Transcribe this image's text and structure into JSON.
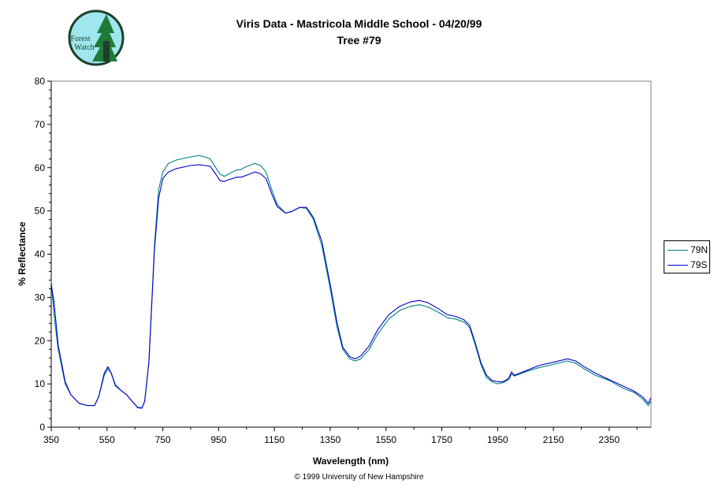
{
  "logo": {
    "line1": "Forest",
    "line2": "Watch",
    "colors": {
      "sky": "#9fe6ee",
      "ring": "#1e3f2a",
      "tree": "#1f7a3a",
      "text": "#1e3f2a"
    }
  },
  "chart_data": {
    "type": "line",
    "title": "Viris Data - Mastricola Middle School - 04/20/99",
    "subtitle": "Tree #79",
    "xlabel": "Wavelength (nm)",
    "ylabel": "% Reflectance",
    "xlim": [
      350,
      2500
    ],
    "ylim": [
      0,
      80
    ],
    "xticks": [
      350,
      550,
      750,
      950,
      1150,
      1350,
      1550,
      1750,
      1950,
      2150,
      2350
    ],
    "yticks": [
      0,
      10,
      20,
      30,
      40,
      50,
      60,
      70,
      80
    ],
    "grid": false,
    "legend_position": "right",
    "series": [
      {
        "name": "79N",
        "color": "#008080",
        "points": [
          [
            350,
            34
          ],
          [
            360,
            26
          ],
          [
            375,
            18
          ],
          [
            400,
            10
          ],
          [
            420,
            7.5
          ],
          [
            450,
            5.5
          ],
          [
            480,
            5
          ],
          [
            505,
            5
          ],
          [
            520,
            7
          ],
          [
            540,
            12
          ],
          [
            553,
            13.5
          ],
          [
            565,
            12.5
          ],
          [
            580,
            9.5
          ],
          [
            600,
            8.5
          ],
          [
            620,
            7.5
          ],
          [
            640,
            6
          ],
          [
            660,
            4.6
          ],
          [
            675,
            4.5
          ],
          [
            685,
            6
          ],
          [
            700,
            15
          ],
          [
            710,
            28
          ],
          [
            720,
            42
          ],
          [
            735,
            55
          ],
          [
            750,
            59
          ],
          [
            770,
            61
          ],
          [
            800,
            61.8
          ],
          [
            850,
            62.5
          ],
          [
            880,
            62.8
          ],
          [
            900,
            62.5
          ],
          [
            920,
            62
          ],
          [
            940,
            60
          ],
          [
            955,
            58.5
          ],
          [
            970,
            58
          ],
          [
            985,
            58.5
          ],
          [
            1000,
            59
          ],
          [
            1015,
            59.5
          ],
          [
            1030,
            59.5
          ],
          [
            1040,
            60
          ],
          [
            1060,
            60.5
          ],
          [
            1080,
            61
          ],
          [
            1100,
            60.5
          ],
          [
            1120,
            59
          ],
          [
            1140,
            55
          ],
          [
            1160,
            51.5
          ],
          [
            1190,
            49.5
          ],
          [
            1210,
            49.8
          ],
          [
            1240,
            50.8
          ],
          [
            1265,
            50.6
          ],
          [
            1290,
            48
          ],
          [
            1320,
            42
          ],
          [
            1350,
            32
          ],
          [
            1375,
            23
          ],
          [
            1395,
            18
          ],
          [
            1420,
            15.8
          ],
          [
            1440,
            15.3
          ],
          [
            1460,
            15.8
          ],
          [
            1490,
            18
          ],
          [
            1520,
            21.5
          ],
          [
            1560,
            25
          ],
          [
            1600,
            27
          ],
          [
            1640,
            28
          ],
          [
            1670,
            28.3
          ],
          [
            1700,
            27.8
          ],
          [
            1740,
            26.5
          ],
          [
            1770,
            25.3
          ],
          [
            1800,
            25
          ],
          [
            1830,
            24.3
          ],
          [
            1850,
            23
          ],
          [
            1870,
            19
          ],
          [
            1890,
            14.5
          ],
          [
            1910,
            11.5
          ],
          [
            1930,
            10.5
          ],
          [
            1950,
            10
          ],
          [
            1970,
            10.3
          ],
          [
            1990,
            11
          ],
          [
            2000,
            12.3
          ],
          [
            2010,
            11.8
          ],
          [
            2050,
            12.8
          ],
          [
            2100,
            13.8
          ],
          [
            2150,
            14.5
          ],
          [
            2200,
            15.3
          ],
          [
            2230,
            14.8
          ],
          [
            2260,
            13.5
          ],
          [
            2300,
            12
          ],
          [
            2350,
            10.8
          ],
          [
            2400,
            9
          ],
          [
            2440,
            8
          ],
          [
            2470,
            6.5
          ],
          [
            2490,
            5
          ],
          [
            2500,
            6
          ]
        ]
      },
      {
        "name": "79S",
        "color": "#0000cc",
        "points": [
          [
            350,
            33
          ],
          [
            360,
            29
          ],
          [
            375,
            19
          ],
          [
            400,
            10.5
          ],
          [
            420,
            7.5
          ],
          [
            450,
            5.5
          ],
          [
            480,
            5
          ],
          [
            505,
            5
          ],
          [
            520,
            7
          ],
          [
            540,
            12.5
          ],
          [
            553,
            14
          ],
          [
            565,
            12.5
          ],
          [
            580,
            9.8
          ],
          [
            600,
            8.5
          ],
          [
            620,
            7.5
          ],
          [
            640,
            6
          ],
          [
            660,
            4.5
          ],
          [
            675,
            4.4
          ],
          [
            685,
            6
          ],
          [
            700,
            15
          ],
          [
            710,
            28
          ],
          [
            720,
            41
          ],
          [
            735,
            53
          ],
          [
            750,
            57.5
          ],
          [
            770,
            59
          ],
          [
            800,
            59.8
          ],
          [
            850,
            60.5
          ],
          [
            880,
            60.7
          ],
          [
            900,
            60.5
          ],
          [
            920,
            60.3
          ],
          [
            940,
            58.5
          ],
          [
            955,
            57
          ],
          [
            970,
            56.8
          ],
          [
            985,
            57.2
          ],
          [
            1000,
            57.5
          ],
          [
            1015,
            57.8
          ],
          [
            1030,
            57.8
          ],
          [
            1040,
            58
          ],
          [
            1060,
            58.5
          ],
          [
            1080,
            59
          ],
          [
            1100,
            58.6
          ],
          [
            1120,
            57.5
          ],
          [
            1140,
            54
          ],
          [
            1160,
            51
          ],
          [
            1190,
            49.5
          ],
          [
            1210,
            49.8
          ],
          [
            1240,
            50.8
          ],
          [
            1265,
            50.8
          ],
          [
            1290,
            48.5
          ],
          [
            1320,
            43
          ],
          [
            1350,
            33
          ],
          [
            1375,
            24
          ],
          [
            1395,
            18.5
          ],
          [
            1420,
            16.3
          ],
          [
            1440,
            15.8
          ],
          [
            1460,
            16.5
          ],
          [
            1490,
            18.8
          ],
          [
            1520,
            22.5
          ],
          [
            1560,
            26
          ],
          [
            1600,
            28
          ],
          [
            1640,
            29
          ],
          [
            1670,
            29.3
          ],
          [
            1700,
            28.8
          ],
          [
            1740,
            27.3
          ],
          [
            1770,
            26
          ],
          [
            1800,
            25.6
          ],
          [
            1830,
            24.8
          ],
          [
            1850,
            23.5
          ],
          [
            1870,
            19.5
          ],
          [
            1890,
            15
          ],
          [
            1910,
            12
          ],
          [
            1930,
            10.8
          ],
          [
            1950,
            10.5
          ],
          [
            1970,
            10.5
          ],
          [
            1990,
            11.3
          ],
          [
            2000,
            12.8
          ],
          [
            2010,
            12
          ],
          [
            2050,
            13
          ],
          [
            2100,
            14.3
          ],
          [
            2150,
            15
          ],
          [
            2200,
            15.8
          ],
          [
            2230,
            15.3
          ],
          [
            2260,
            14
          ],
          [
            2300,
            12.5
          ],
          [
            2350,
            11
          ],
          [
            2400,
            9.5
          ],
          [
            2440,
            8.3
          ],
          [
            2470,
            7
          ],
          [
            2490,
            5.5
          ],
          [
            2500,
            6.8
          ]
        ]
      }
    ]
  },
  "footer": {
    "copyright": "© 1999 University of New Hampshire"
  }
}
